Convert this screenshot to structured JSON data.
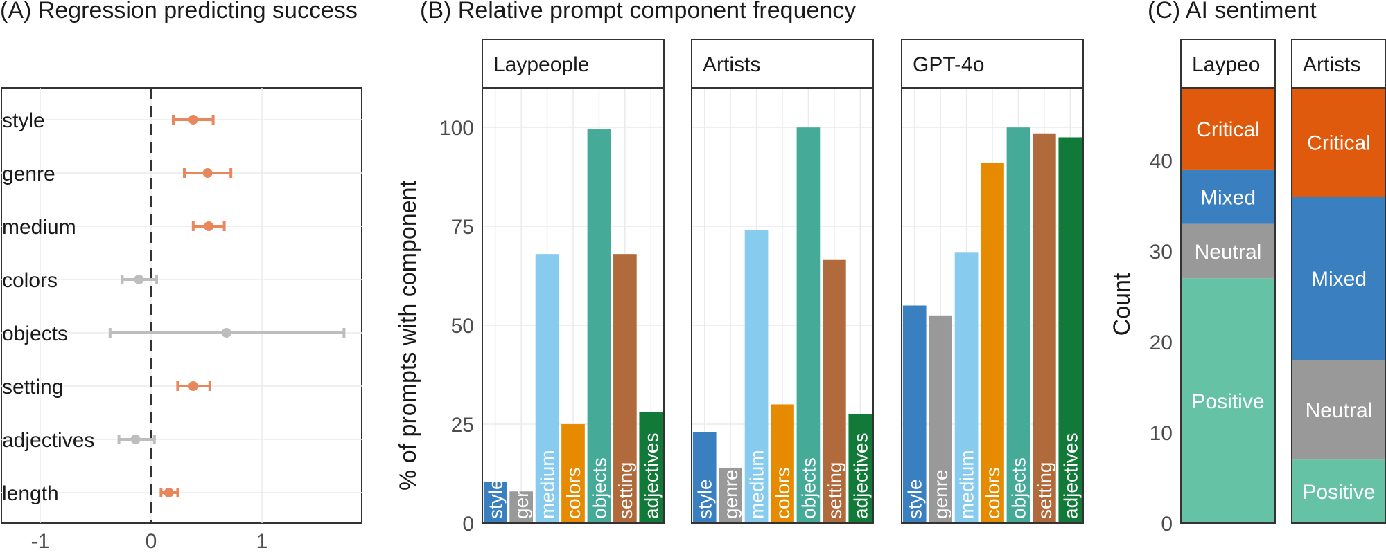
{
  "chart_data": [
    {
      "type": "scatter",
      "title": "(A) Regression predicting success",
      "xlabel": "",
      "ylabel": "",
      "xlim": [
        -1.35,
        1.9
      ],
      "x_ticks": [
        "-1",
        "0",
        "1"
      ],
      "x_tick_values": [
        -1,
        0,
        1
      ],
      "reference_line": 0,
      "points": [
        {
          "label": "style",
          "estimate": 0.38,
          "low": 0.2,
          "high": 0.56,
          "significant": true
        },
        {
          "label": "genre",
          "estimate": 0.51,
          "low": 0.3,
          "high": 0.72,
          "significant": true
        },
        {
          "label": "medium",
          "estimate": 0.52,
          "low": 0.38,
          "high": 0.66,
          "significant": true
        },
        {
          "label": "colors",
          "estimate": -0.11,
          "low": -0.26,
          "high": 0.05,
          "significant": false
        },
        {
          "label": "objects",
          "estimate": 0.68,
          "low": -0.37,
          "high": 1.74,
          "significant": false
        },
        {
          "label": "setting",
          "estimate": 0.38,
          "low": 0.24,
          "high": 0.53,
          "significant": true
        },
        {
          "label": "adjectives",
          "estimate": -0.14,
          "low": -0.29,
          "high": 0.03,
          "significant": false
        },
        {
          "label": "length",
          "estimate": 0.16,
          "low": 0.09,
          "high": 0.24,
          "significant": true
        }
      ],
      "colors": {
        "significant": "#E8875C",
        "not_significant": "#BDBDBD"
      }
    },
    {
      "type": "bar",
      "title": "(B) Relative prompt component frequency",
      "xlabel": "",
      "ylabel": "% of prompts with component",
      "ylim": [
        0,
        110
      ],
      "y_ticks": [
        "0",
        "25",
        "50",
        "75",
        "100"
      ],
      "y_tick_values": [
        0,
        25,
        50,
        75,
        100
      ],
      "categories": [
        "style",
        "genre",
        "medium",
        "colors",
        "objects",
        "setting",
        "adjectives"
      ],
      "category_labels": {
        "Laypeople": [
          "style",
          "ger",
          "medium",
          "colors",
          "objects",
          "setting",
          "adjectives"
        ],
        "Artists": [
          "style",
          "genre",
          "medium",
          "colors",
          "objects",
          "setting",
          "adjectives"
        ],
        "GPT-4o": [
          "style",
          "genre",
          "medium",
          "colors",
          "objects",
          "setting",
          "adjectives"
        ]
      },
      "colors": [
        "#3A7FBF",
        "#999999",
        "#87CBEE",
        "#E68A00",
        "#46AA99",
        "#B06A3B",
        "#127A38"
      ],
      "panels": [
        {
          "name": "Laypeople",
          "values": [
            10.5,
            8,
            68,
            25,
            99.5,
            68,
            28
          ]
        },
        {
          "name": "Artists",
          "values": [
            23,
            14,
            74,
            30,
            100,
            66.5,
            27.5
          ]
        },
        {
          "name": "GPT-4o",
          "values": [
            55,
            52.5,
            68.5,
            91,
            100,
            98.5,
            97.5
          ]
        }
      ]
    },
    {
      "type": "bar",
      "stacked": true,
      "title": "(C) AI sentiment",
      "xlabel": "",
      "ylabel": "Count",
      "ylim": [
        0,
        48
      ],
      "y_ticks": [
        "0",
        "10",
        "20",
        "30",
        "40"
      ],
      "y_tick_values": [
        0,
        10,
        20,
        30,
        40
      ],
      "series_order": [
        "Positive",
        "Neutral",
        "Mixed",
        "Critical"
      ],
      "colors": {
        "Positive": "#66C2A5",
        "Neutral": "#999999",
        "Mixed": "#3A7FBF",
        "Critical": "#E05A0E"
      },
      "panels": [
        {
          "name": "Laypeo",
          "values": {
            "Positive": 27,
            "Neutral": 6,
            "Mixed": 6,
            "Critical": 9
          }
        },
        {
          "name": "Artists",
          "values": {
            "Positive": 7,
            "Neutral": 11,
            "Mixed": 18,
            "Critical": 12
          }
        }
      ]
    }
  ]
}
